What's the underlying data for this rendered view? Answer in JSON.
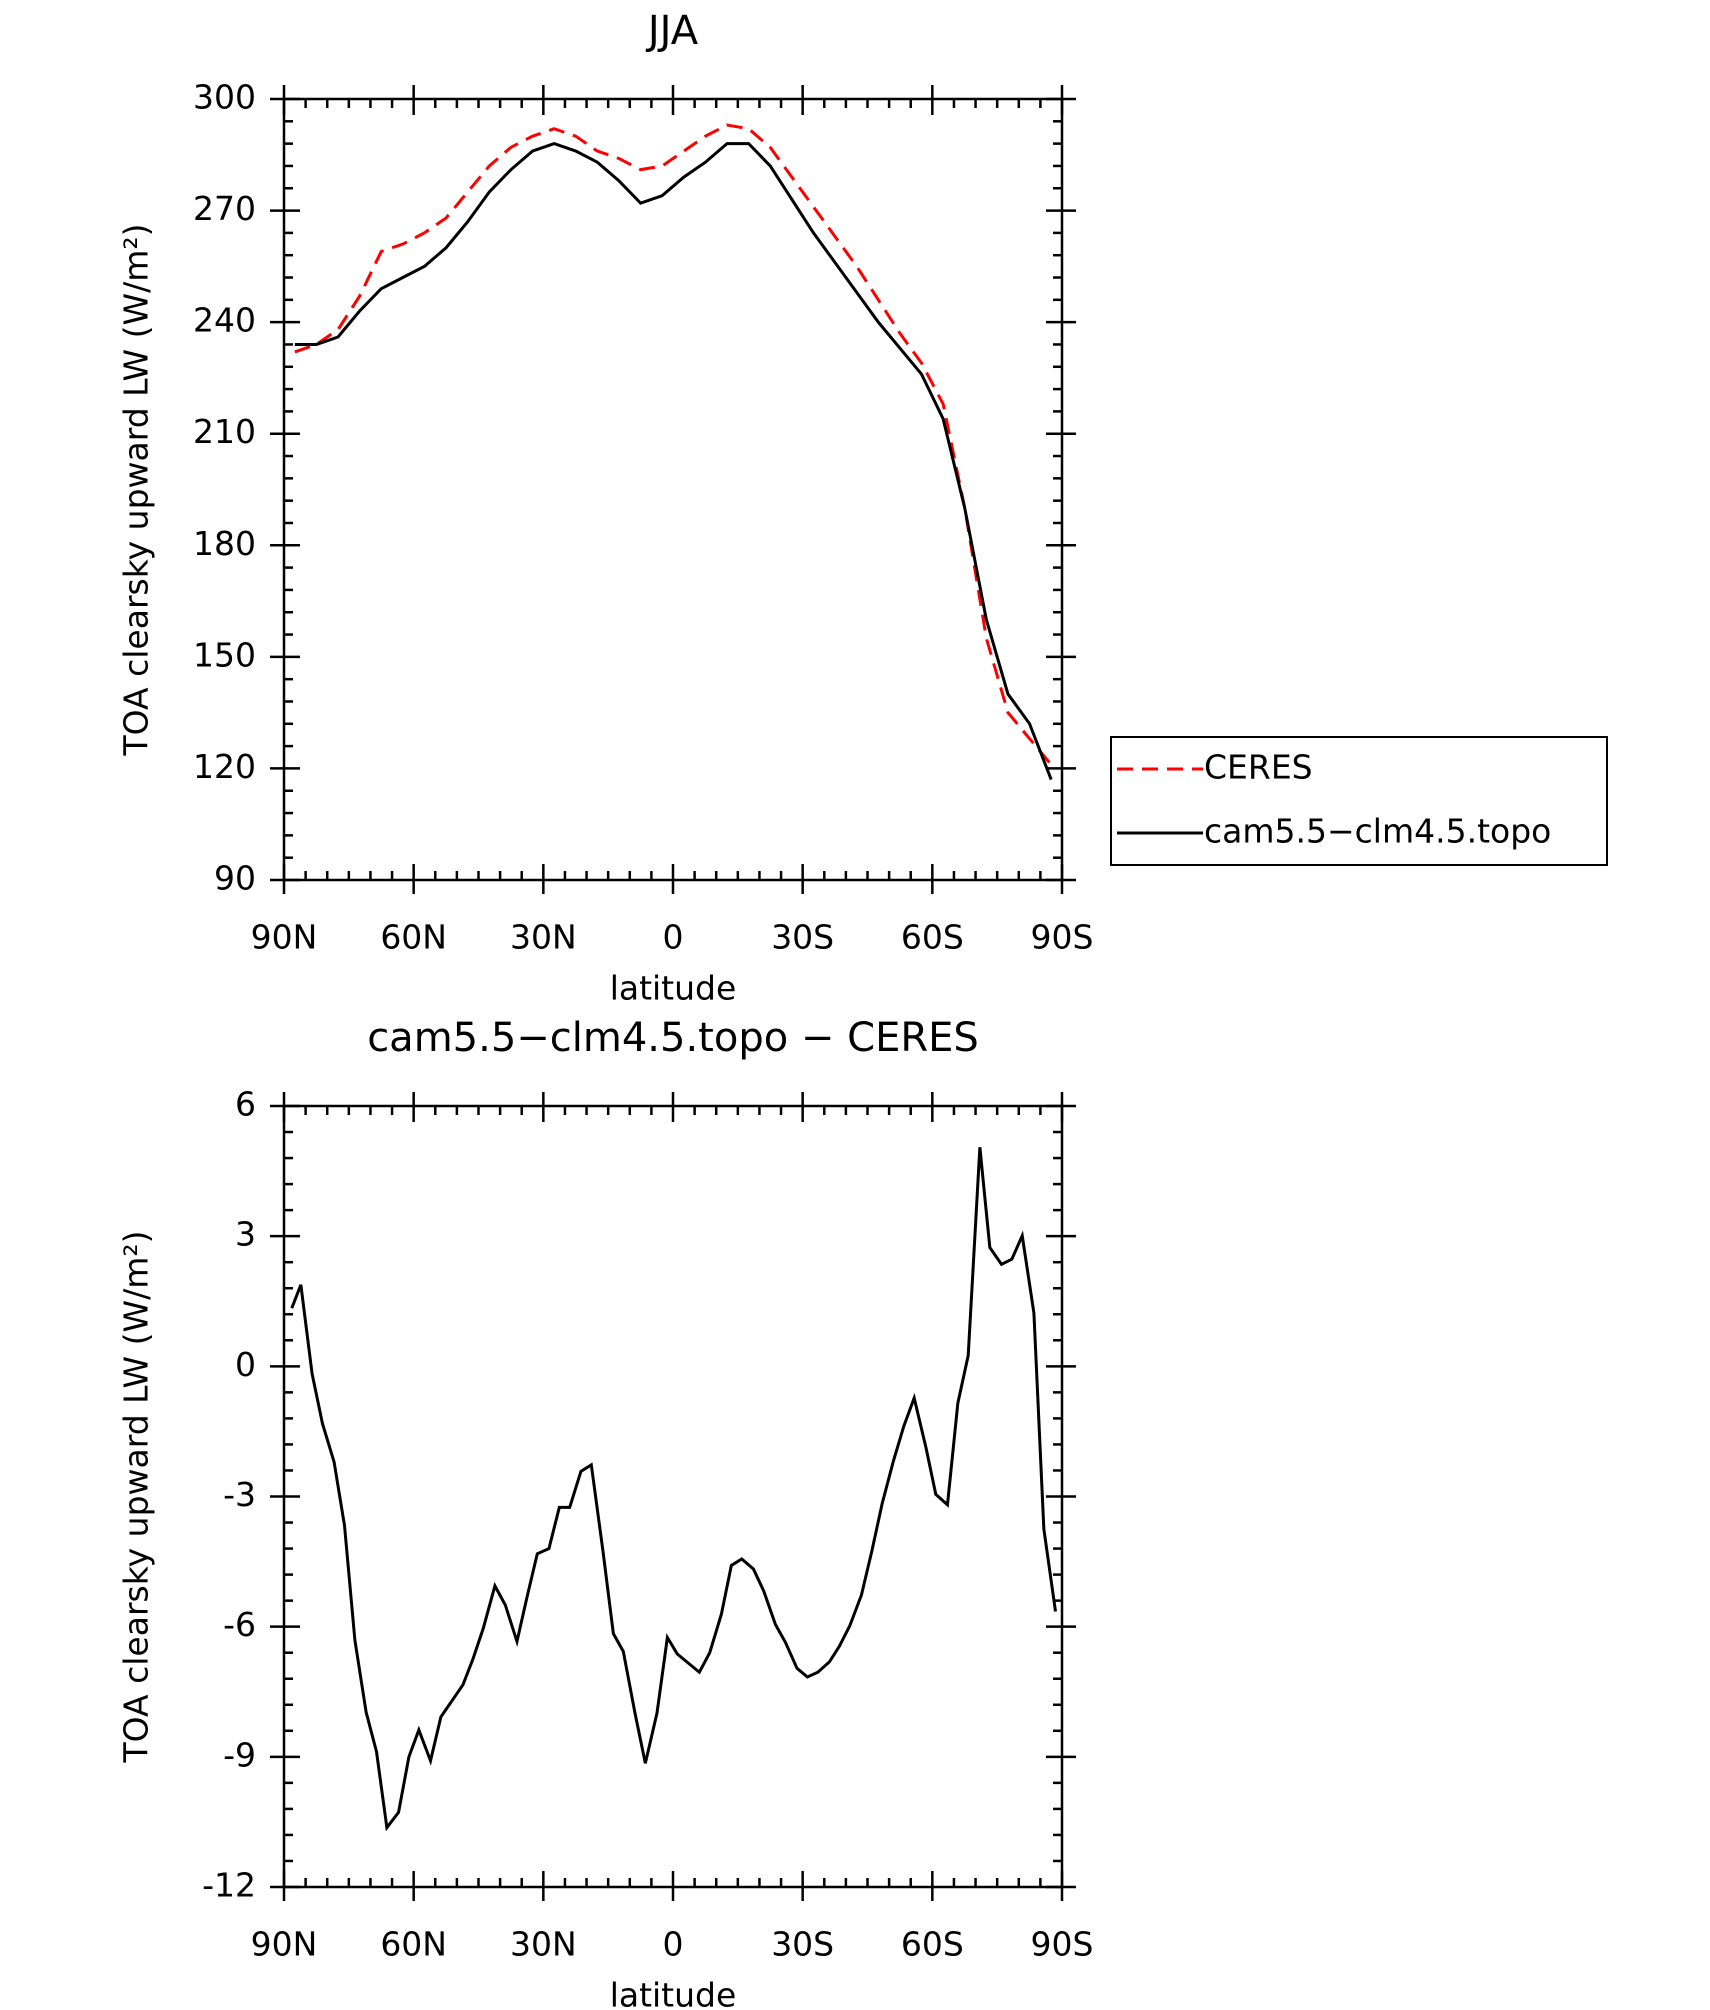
{
  "chart_data": [
    {
      "type": "line",
      "title": "JJA",
      "xlabel": "latitude",
      "ylabel": "TOA clearsky upward LW (W/m²)",
      "x": [
        87.5,
        82.5,
        77.5,
        72.5,
        67.5,
        62.5,
        57.5,
        52.5,
        47.5,
        42.5,
        37.5,
        32.5,
        27.5,
        22.5,
        17.5,
        12.5,
        7.5,
        2.5,
        -2.5,
        -7.5,
        -12.5,
        -17.5,
        -22.5,
        -27.5,
        -32.5,
        -37.5,
        -42.5,
        -47.5,
        -52.5,
        -57.5,
        -62.5,
        -67.5,
        -72.5,
        -77.5,
        -82.5,
        -87.5
      ],
      "series": [
        {
          "name": "CERES",
          "color": "#ff0000",
          "dash": true,
          "values": [
            232,
            234,
            238,
            247,
            259,
            261,
            264,
            268,
            275,
            282,
            287,
            290,
            292,
            290,
            286,
            284,
            281,
            282,
            286,
            290,
            293,
            292,
            287,
            279,
            271,
            263,
            255,
            246,
            237,
            229,
            218,
            190,
            155,
            135,
            128,
            121
          ]
        },
        {
          "name": "cam5.5−clm4.5.topo",
          "color": "#000000",
          "dash": false,
          "values": [
            234,
            234,
            236,
            243,
            249,
            252,
            255,
            260,
            267,
            275,
            281,
            286,
            288,
            286,
            283,
            278,
            272,
            274,
            279,
            283,
            288,
            288,
            282,
            273,
            264,
            256,
            248,
            240,
            233,
            226,
            214,
            190,
            160,
            140,
            132,
            117
          ]
        }
      ],
      "xlim": [
        90,
        -90
      ],
      "xticks": [
        {
          "value": 90,
          "label": "90N"
        },
        {
          "value": 60,
          "label": "60N"
        },
        {
          "value": 30,
          "label": "30N"
        },
        0,
        {
          "value": -30,
          "label": "30S"
        },
        {
          "value": -60,
          "label": "60S"
        },
        {
          "value": -90,
          "label": "90S"
        }
      ],
      "ylim": [
        90,
        300
      ],
      "yticks": [
        90,
        120,
        150,
        180,
        210,
        240,
        270,
        300
      ],
      "legend": "outside right"
    },
    {
      "type": "line",
      "title": "cam5.5−clm4.5.topo − CERES",
      "xlabel": "latitude",
      "ylabel": "TOA clearsky upward LW (W/m²)",
      "x": [
        88.2,
        86.1,
        83.5,
        81.1,
        78.4,
        76.0,
        73.6,
        71.0,
        68.6,
        66.2,
        63.5,
        61.1,
        58.8,
        56.1,
        53.7,
        48.6,
        46.3,
        43.9,
        41.2,
        38.8,
        36.1,
        33.8,
        31.4,
        28.7,
        26.3,
        23.9,
        21.3,
        18.9,
        16.2,
        13.8,
        11.5,
        8.8,
        6.4,
        3.7,
        1.3,
        -1.0,
        -6.1,
        -8.5,
        -11.2,
        -13.5,
        -15.9,
        -18.6,
        -21.0,
        -23.7,
        -26.0,
        -28.7,
        -31.1,
        -33.5,
        -36.2,
        -38.5,
        -40.9,
        -43.6,
        -46.0,
        -48.4,
        -51.0,
        -53.4,
        -55.8,
        -58.5,
        -60.8,
        -63.5,
        -65.9,
        -68.3,
        -71.0,
        -73.3,
        -76.0,
        -78.4,
        -80.8,
        -83.5,
        -85.8,
        -88.5
      ],
      "values": [
        1.34,
        1.88,
        -0.17,
        -1.32,
        -2.21,
        -3.67,
        -6.31,
        -7.97,
        -8.88,
        -10.63,
        -10.28,
        -9.0,
        -8.38,
        -9.09,
        -8.08,
        -7.34,
        -6.75,
        -6.04,
        -5.06,
        -5.5,
        -6.34,
        -5.33,
        -4.32,
        -4.2,
        -3.25,
        -3.25,
        -2.42,
        -2.27,
        -4.26,
        -6.16,
        -6.57,
        -7.99,
        -9.15,
        -7.99,
        -6.25,
        -6.63,
        -7.05,
        -6.6,
        -5.71,
        -4.59,
        -4.44,
        -4.67,
        -5.18,
        -5.95,
        -6.36,
        -6.96,
        -7.16,
        -7.05,
        -6.81,
        -6.45,
        -5.98,
        -5.27,
        -4.26,
        -3.16,
        -2.18,
        -1.38,
        -0.73,
        -1.86,
        -2.95,
        -3.19,
        -0.85,
        0.25,
        5.05,
        2.74,
        2.35,
        2.47,
        3.01,
        1.23,
        -3.75,
        -5.65
      ],
      "color": "#000000",
      "xlim": [
        90,
        -90
      ],
      "xticks": [
        {
          "value": 90,
          "label": "90N"
        },
        {
          "value": 60,
          "label": "60N"
        },
        {
          "value": 30,
          "label": "30N"
        },
        0,
        {
          "value": -30,
          "label": "30S"
        },
        {
          "value": -60,
          "label": "60S"
        },
        {
          "value": -90,
          "label": "90S"
        }
      ],
      "ylim": [
        -12,
        6
      ],
      "yticks": [
        -12,
        -9,
        -6,
        -3,
        0,
        3,
        6
      ]
    }
  ]
}
